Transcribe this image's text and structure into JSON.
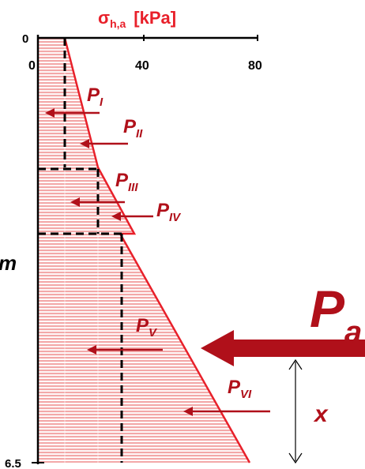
{
  "axis": {
    "title_sigma": "σ",
    "title_sub": "h,a",
    "title_unit": "[kPa]",
    "ticks": [
      "0",
      "40",
      "80"
    ],
    "depth_top": "0",
    "depth_bottom": "6.5",
    "depth_unit_fragment": "m"
  },
  "forces": {
    "p1": {
      "main": "P",
      "sub": "I"
    },
    "p2": {
      "main": "P",
      "sub": "II"
    },
    "p3": {
      "main": "P",
      "sub": "III"
    },
    "p4": {
      "main": "P",
      "sub": "IV"
    },
    "p5": {
      "main": "P",
      "sub": "V"
    },
    "p6": {
      "main": "P",
      "sub": "VI"
    },
    "resultant": {
      "main": "P",
      "sub": "a"
    },
    "lever_arm": "x"
  },
  "colors": {
    "pressure": "#e8202a",
    "arrow": "#b0101a",
    "hatch": "#f3a8a8",
    "axis": "#000000"
  }
}
